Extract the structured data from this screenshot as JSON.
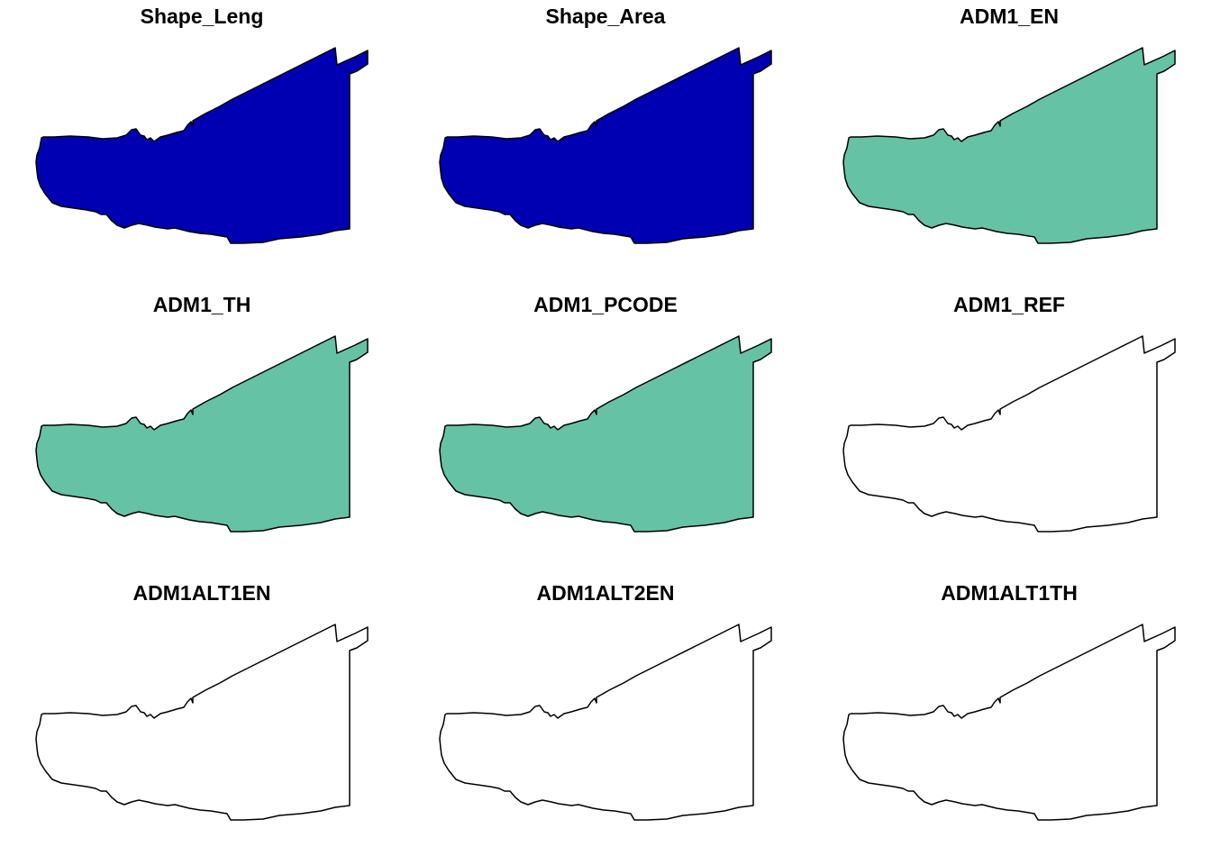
{
  "panels": [
    {
      "title": "Shape_Leng",
      "fill": "#0000B2"
    },
    {
      "title": "Shape_Area",
      "fill": "#0000B2"
    },
    {
      "title": "ADM1_EN",
      "fill": "#66C2A5"
    },
    {
      "title": "ADM1_TH",
      "fill": "#66C2A5"
    },
    {
      "title": "ADM1_PCODE",
      "fill": "#66C2A5"
    },
    {
      "title": "ADM1_REF",
      "fill": "#FFFFFF"
    },
    {
      "title": "ADM1ALT1EN",
      "fill": "#FFFFFF"
    },
    {
      "title": "ADM1ALT2EN",
      "fill": "#FFFFFF"
    },
    {
      "title": "ADM1ALT1TH",
      "fill": "#FFFFFF"
    }
  ],
  "border_color": "#000000"
}
